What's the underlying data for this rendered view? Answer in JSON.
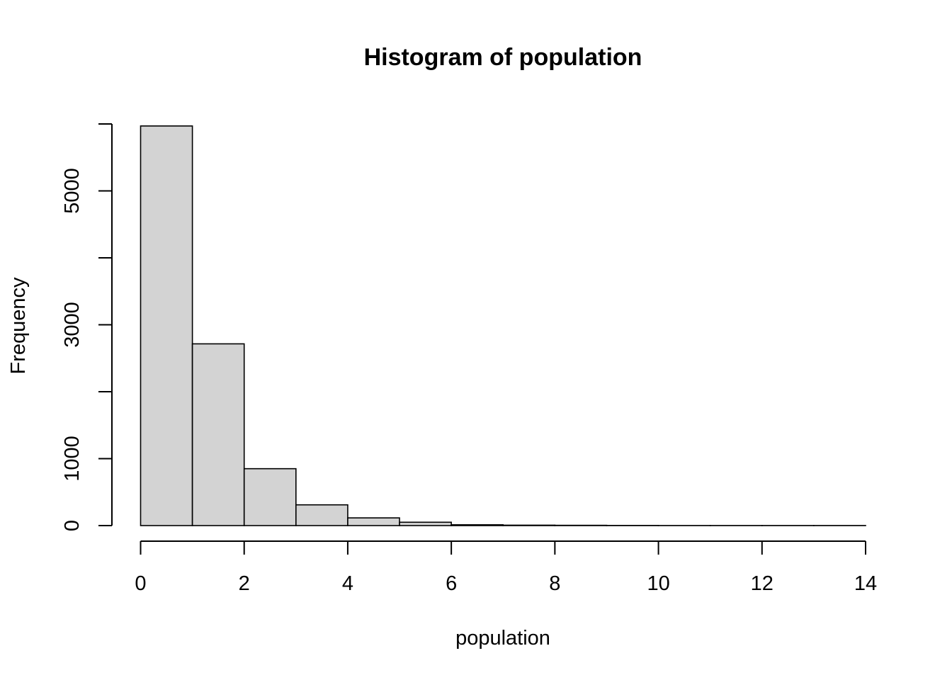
{
  "chart_data": {
    "type": "bar",
    "title": "Histogram of population",
    "xlabel": "population",
    "ylabel": "Frequency",
    "bins": [
      {
        "start": 0,
        "end": 1,
        "count": 5970
      },
      {
        "start": 1,
        "end": 2,
        "count": 2715
      },
      {
        "start": 2,
        "end": 3,
        "count": 850
      },
      {
        "start": 3,
        "end": 4,
        "count": 310
      },
      {
        "start": 4,
        "end": 5,
        "count": 115
      },
      {
        "start": 5,
        "end": 6,
        "count": 50
      },
      {
        "start": 6,
        "end": 7,
        "count": 12
      },
      {
        "start": 7,
        "end": 8,
        "count": 6
      },
      {
        "start": 8,
        "end": 9,
        "count": 4
      },
      {
        "start": 9,
        "end": 10,
        "count": 2
      },
      {
        "start": 10,
        "end": 11,
        "count": 1
      },
      {
        "start": 11,
        "end": 12,
        "count": 1
      },
      {
        "start": 12,
        "end": 13,
        "count": 1
      },
      {
        "start": 13,
        "end": 14,
        "count": 1
      }
    ],
    "xlim": [
      0,
      14
    ],
    "ylim": [
      0,
      6000
    ],
    "x_ticks": [
      0,
      2,
      4,
      6,
      8,
      10,
      12,
      14
    ],
    "y_ticks": [
      0,
      1000,
      2000,
      3000,
      4000,
      5000,
      6000
    ],
    "y_tick_labels": [
      "0",
      "",
      "",
      "3000",
      "",
      "5000",
      ""
    ],
    "y_tick_labels_fix": [
      "0",
      "1000",
      "",
      "3000",
      "",
      "5000",
      ""
    ],
    "bar_fill": "#d3d3d3",
    "bar_stroke": "#000000",
    "grid": false
  }
}
